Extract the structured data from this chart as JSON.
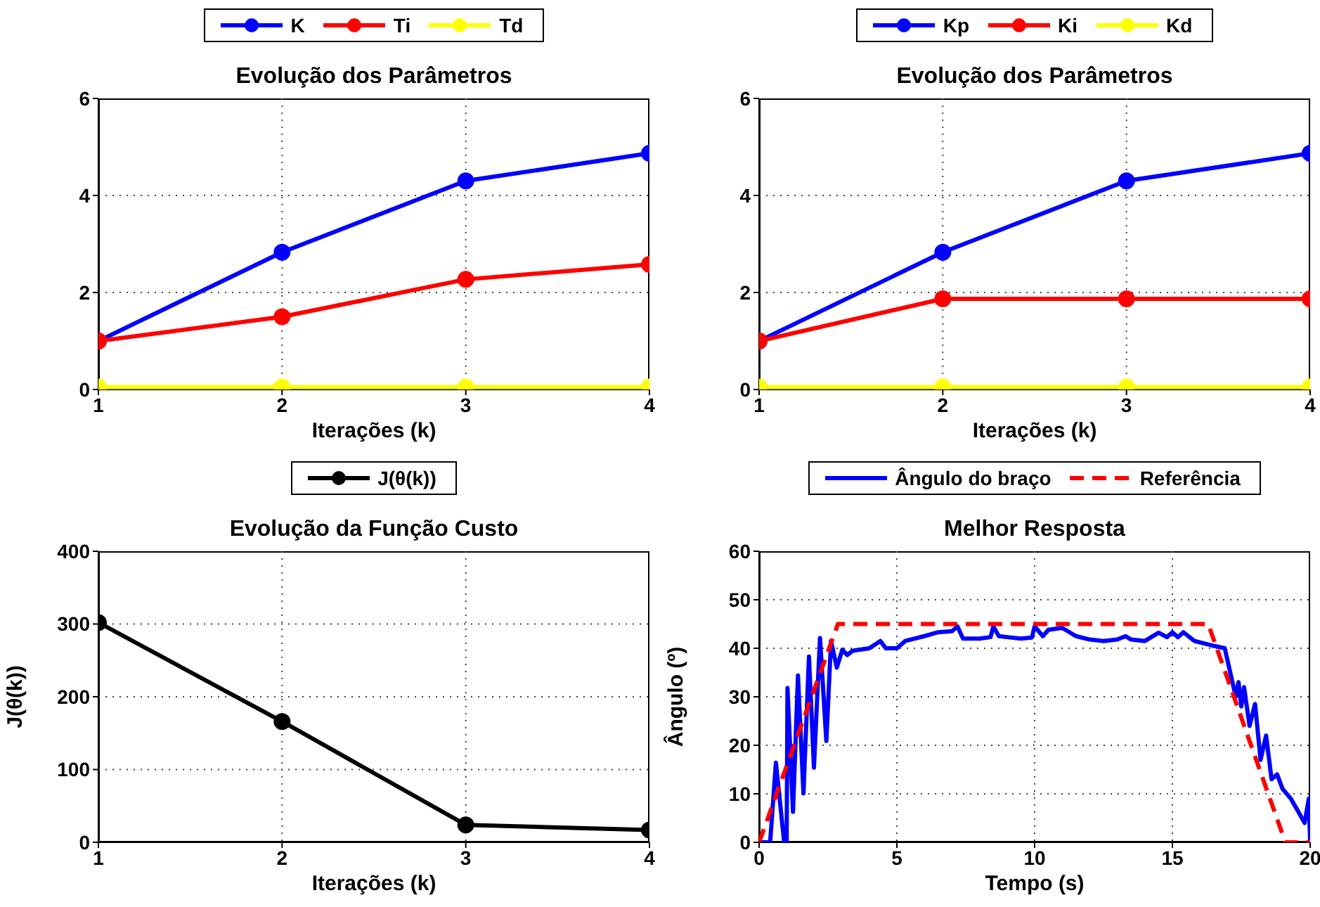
{
  "chart_data": [
    {
      "type": "line",
      "title": "Evolução dos Parâmetros",
      "xlabel": "Iterações (k)",
      "x": [
        1,
        2,
        3,
        4
      ],
      "xlim": [
        1,
        4
      ],
      "xticks": [
        1,
        2,
        3,
        4
      ],
      "ylim": [
        0,
        6
      ],
      "yticks": [
        0,
        2,
        4,
        6
      ],
      "grid": true,
      "legend": "top",
      "marker": "circle",
      "series": [
        {
          "name": "K",
          "color": "#0000ff",
          "values": [
            1,
            2.83,
            4.3,
            4.87
          ]
        },
        {
          "name": "Ti",
          "color": "#ff0000",
          "values": [
            1,
            1.5,
            2.27,
            2.58
          ]
        },
        {
          "name": "Td",
          "color": "#ffff00",
          "values": [
            0.05,
            0.05,
            0.05,
            0.05
          ]
        }
      ]
    },
    {
      "type": "line",
      "title": "Evolução dos Parâmetros",
      "xlabel": "Iterações (k)",
      "x": [
        1,
        2,
        3,
        4
      ],
      "xlim": [
        1,
        4
      ],
      "xticks": [
        1,
        2,
        3,
        4
      ],
      "ylim": [
        0,
        6
      ],
      "yticks": [
        0,
        2,
        4,
        6
      ],
      "grid": true,
      "legend": "top",
      "marker": "circle",
      "series": [
        {
          "name": "Kp",
          "color": "#0000ff",
          "values": [
            1,
            2.83,
            4.3,
            4.87
          ]
        },
        {
          "name": "Ki",
          "color": "#ff0000",
          "values": [
            1,
            1.87,
            1.87,
            1.87
          ]
        },
        {
          "name": "Kd",
          "color": "#ffff00",
          "values": [
            0.05,
            0.05,
            0.05,
            0.05
          ]
        }
      ]
    },
    {
      "type": "line",
      "title": "Evolução da Função Custo",
      "xlabel": "Iterações (k)",
      "ylabel": "J(θ(k))",
      "x": [
        1,
        2,
        3,
        4
      ],
      "xlim": [
        1,
        4
      ],
      "xticks": [
        1,
        2,
        3,
        4
      ],
      "ylim": [
        0,
        400
      ],
      "yticks": [
        0,
        100,
        200,
        300,
        400
      ],
      "grid": true,
      "legend": "top",
      "marker": "circle",
      "series": [
        {
          "name": "J(θ(k))",
          "color": "#000000",
          "values": [
            302,
            166,
            24,
            17
          ]
        }
      ]
    },
    {
      "type": "line",
      "title": "Melhor Resposta",
      "xlabel": "Tempo (s)",
      "ylabel": "Ângulo (º)",
      "xlim": [
        0,
        20
      ],
      "xticks": [
        0,
        5,
        10,
        15,
        20
      ],
      "ylim": [
        0,
        60
      ],
      "yticks": [
        0,
        10,
        20,
        30,
        40,
        50,
        60
      ],
      "grid": true,
      "legend": "top",
      "marker": "none",
      "series": [
        {
          "name": "Ângulo do braço",
          "color": "#0000ff",
          "line_style": "solid",
          "x": [
            0,
            0.4,
            0.61,
            0.91,
            1.0,
            1.03,
            1.23,
            1.41,
            1.61,
            1.81,
            1.99,
            2.21,
            2.44,
            2.61,
            2.82,
            3.02,
            3.2,
            3.4,
            4,
            4.4,
            4.6,
            5,
            5.3,
            6,
            6.5,
            7,
            7.2,
            7.4,
            8,
            8.4,
            8.5,
            8.7,
            9,
            9.5,
            9.9,
            10,
            10.3,
            10.5,
            11,
            11.5,
            12,
            12.5,
            13,
            13.3,
            13.5,
            14,
            14.5,
            14.8,
            15,
            15.2,
            15.4,
            15.8,
            16,
            16.5,
            16.9,
            17.1,
            17.3,
            17.4,
            17.5,
            17.6,
            17.8,
            18,
            18.2,
            18.4,
            18.6,
            18.8,
            19,
            19.3,
            19.6,
            19.8,
            19.95,
            20
          ],
          "values": [
            0,
            0,
            16.4,
            0,
            0,
            31.8,
            6.3,
            34.4,
            10.1,
            38.3,
            15.4,
            42.1,
            20.9,
            41.5,
            36,
            39.7,
            38.6,
            39.5,
            40,
            41.5,
            40,
            40,
            41.5,
            42.5,
            43.3,
            43.5,
            44.5,
            42,
            42,
            42.3,
            44.5,
            42.5,
            42.3,
            42,
            42.2,
            44.5,
            42.5,
            43.8,
            44.2,
            42.5,
            41.8,
            41.5,
            41.8,
            42.5,
            41.8,
            41.5,
            43.2,
            42.3,
            43.3,
            42.3,
            43.3,
            41.5,
            41.2,
            40.5,
            40,
            35,
            30,
            33,
            28,
            32,
            24,
            28.5,
            17,
            22,
            13,
            14,
            11,
            9,
            6,
            4,
            9,
            0
          ]
        },
        {
          "name": "Referência",
          "color": "#ff0000",
          "line_style": "dashed",
          "x": [
            0,
            2.86,
            16.3,
            19.1,
            20
          ],
          "values": [
            0,
            45,
            45,
            0,
            0
          ]
        }
      ]
    }
  ]
}
